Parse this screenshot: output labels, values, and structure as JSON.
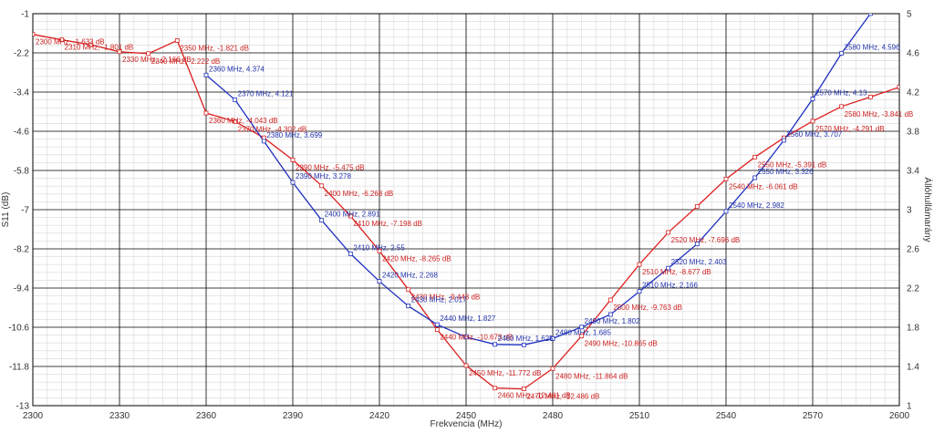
{
  "chart_data": {
    "type": "line",
    "xlabel": "Frekvencia (MHz)",
    "ylabel_left": "S11 (dB)",
    "ylabel_right": "Állóhullámarány",
    "xlim": [
      2300,
      2600
    ],
    "ylim_left": [
      -13,
      -1
    ],
    "ylim_right": [
      1,
      5
    ],
    "x_ticks": [
      2300,
      2330,
      2360,
      2390,
      2420,
      2450,
      2480,
      2510,
      2540,
      2570,
      2600
    ],
    "y_left_ticks": [
      -1,
      -2.2,
      -3.4,
      -4.6,
      -5.8,
      -7,
      -8.2,
      -9.4,
      -10.6,
      -11.8,
      -13
    ],
    "y_right_ticks": [
      5,
      4.6,
      4.2,
      3.8,
      3.4,
      3,
      2.6,
      2.2,
      1.8,
      1.4,
      1
    ],
    "grid": true,
    "colors": {
      "s11": "#dd1f1f",
      "vswr": "#1d2fbf",
      "grid_major": "#000000",
      "grid_minor": "#d8d8d8"
    },
    "series": [
      {
        "name": "S11",
        "axis": "left",
        "x": [
          2300,
          2310,
          2320,
          2330,
          2340,
          2350,
          2360,
          2370,
          2380,
          2390,
          2400,
          2410,
          2420,
          2430,
          2440,
          2450,
          2460,
          2470,
          2480,
          2490,
          2500,
          2510,
          2520,
          2530,
          2540,
          2550,
          2560,
          2570,
          2580,
          2590,
          2600
        ],
        "values": [
          -1.633,
          -1.801,
          -1.95,
          -2.166,
          -2.222,
          -1.821,
          -4.043,
          -4.302,
          -4.8,
          -5.475,
          -6.268,
          -7.198,
          -8.265,
          -9.448,
          -10.673,
          -11.772,
          -12.461,
          -12.486,
          -11.864,
          -10.865,
          -9.763,
          -8.677,
          -7.696,
          -6.9,
          -6.061,
          -5.391,
          -4.8,
          -4.291,
          -3.841,
          -3.55,
          -3.25
        ]
      },
      {
        "name": "VSWR",
        "axis": "right",
        "x": [
          2360,
          2370,
          2380,
          2390,
          2400,
          2410,
          2420,
          2430,
          2440,
          2450,
          2460,
          2470,
          2480,
          2490,
          2500,
          2510,
          2520,
          2530,
          2540,
          2550,
          2560,
          2570,
          2580,
          2590
        ],
        "values": [
          4.374,
          4.121,
          3.699,
          3.278,
          2.891,
          2.55,
          2.268,
          2.017,
          1.827,
          1.7,
          1.625,
          1.62,
          1.685,
          1.802,
          1.93,
          2.166,
          2.403,
          2.65,
          2.982,
          3.326,
          3.707,
          4.13,
          4.596,
          5.0
        ]
      }
    ],
    "labels_s11": [
      {
        "x": 2300,
        "text": "2300 MHz, -1.633 dB"
      },
      {
        "x": 2310,
        "text": "2310 MHz, -1.801 dB"
      },
      {
        "x": 2330,
        "text": "2330 MHz, -2.166 dB"
      },
      {
        "x": 2340,
        "text": "2340 MHz, -2.222 dB"
      },
      {
        "x": 2350,
        "text": "2350 MHz, -1.821 dB"
      },
      {
        "x": 2360,
        "text": "2360 MHz, -4.043 dB"
      },
      {
        "x": 2370,
        "text": "2370 MHz, -4.302 dB"
      },
      {
        "x": 2390,
        "text": "2390 MHz, -5.475 dB"
      },
      {
        "x": 2400,
        "text": "2400 MHz, -6.268 dB"
      },
      {
        "x": 2410,
        "text": "2410 MHz, -7.198 dB"
      },
      {
        "x": 2420,
        "text": "2420 MHz, -8.265 dB"
      },
      {
        "x": 2430,
        "text": "2430 MHz, -9.448 dB"
      },
      {
        "x": 2440,
        "text": "2440 MHz, -10.673 dB"
      },
      {
        "x": 2450,
        "text": "2450 MHz, -11.772 dB"
      },
      {
        "x": 2460,
        "text": "2460 MHz, -12.461 dB"
      },
      {
        "x": 2470,
        "text": "2470 MHz, -12.486 dB"
      },
      {
        "x": 2480,
        "text": "2480 MHz, -11.864 dB"
      },
      {
        "x": 2490,
        "text": "2490 MHz, -10.865 dB"
      },
      {
        "x": 2500,
        "text": "2500 MHz, -9.763 dB"
      },
      {
        "x": 2510,
        "text": "2510 MHz, -8.677 dB"
      },
      {
        "x": 2520,
        "text": "2520 MHz, -7.696 dB"
      },
      {
        "x": 2540,
        "text": "2540 MHz, -6.061 dB"
      },
      {
        "x": 2550,
        "text": "2550 MHz, -5.391 dB"
      },
      {
        "x": 2570,
        "text": "2570 MHz, -4.291 dB"
      },
      {
        "x": 2580,
        "text": "2580 MHz, -3.841 dB"
      }
    ],
    "labels_vswr": [
      {
        "x": 2360,
        "text": "2360 MHz, 4.374"
      },
      {
        "x": 2370,
        "text": "2370 MHz, 4.121"
      },
      {
        "x": 2380,
        "text": "2380 MHz, 3.699"
      },
      {
        "x": 2390,
        "text": "2390 MHz, 3.278"
      },
      {
        "x": 2400,
        "text": "2400 MHz, 2.891"
      },
      {
        "x": 2410,
        "text": "2410 MHz, 2.55"
      },
      {
        "x": 2420,
        "text": "2420 MHz, 2.268"
      },
      {
        "x": 2430,
        "text": "2430 MHz, 2.017"
      },
      {
        "x": 2440,
        "text": "2440 MHz, 1.827"
      },
      {
        "x": 2460,
        "text": "2460 MHz, 1.625"
      },
      {
        "x": 2480,
        "text": "2480 MHz, 1.685"
      },
      {
        "x": 2490,
        "text": "2490 MHz, 1.802"
      },
      {
        "x": 2510,
        "text": "2510 MHz, 2.166"
      },
      {
        "x": 2520,
        "text": "2520 MHz, 2.403"
      },
      {
        "x": 2540,
        "text": "2540 MHz, 2.982"
      },
      {
        "x": 2550,
        "text": "2550 MHz, 3.326"
      },
      {
        "x": 2560,
        "text": "2560 MHz, 3.707"
      },
      {
        "x": 2570,
        "text": "2570 MHz, 4.13"
      },
      {
        "x": 2580,
        "text": "2580 MHz, 4.596"
      }
    ]
  }
}
